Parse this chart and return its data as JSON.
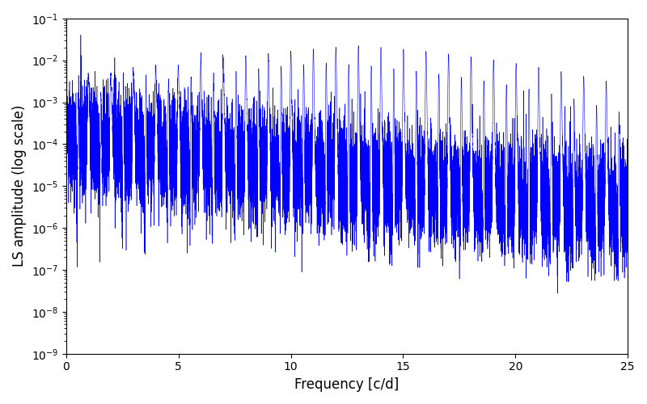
{
  "xlabel": "Frequency [c/d]",
  "ylabel": "LS amplitude (log scale)",
  "xlim": [
    0,
    25
  ],
  "ylim": [
    1e-09,
    0.1
  ],
  "line_color": "#0000FF",
  "background_color": "#ffffff",
  "figsize": [
    8.0,
    5.0
  ],
  "dpi": 100,
  "xticks": [
    0,
    5,
    10,
    15,
    20,
    25
  ],
  "seed": 12345
}
